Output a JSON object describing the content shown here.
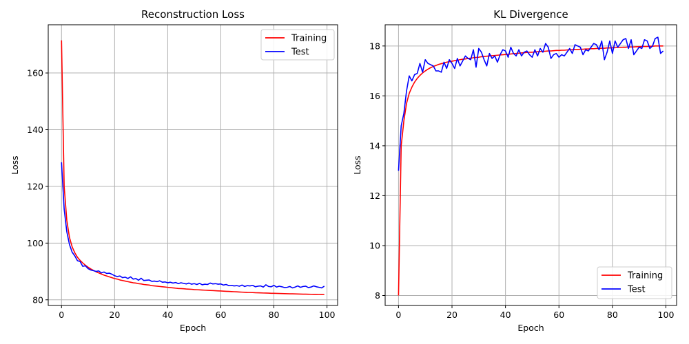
{
  "chart_data": [
    {
      "type": "line",
      "title": "Reconstruction Loss",
      "xlabel": "Epoch",
      "ylabel": "Loss",
      "xlim": [
        -5,
        104
      ],
      "ylim": [
        78,
        177
      ],
      "xticks": [
        0,
        20,
        40,
        60,
        80,
        100
      ],
      "yticks": [
        80,
        100,
        120,
        140,
        160
      ],
      "grid": true,
      "legend": "top-right",
      "series": [
        {
          "name": "Training",
          "color": "#ff0000",
          "x": [
            0,
            1,
            2,
            3,
            4,
            5,
            6,
            7,
            8,
            9,
            10,
            11,
            12,
            13,
            14,
            15,
            16,
            17,
            18,
            19,
            20,
            21,
            22,
            23,
            24,
            25,
            26,
            27,
            28,
            29,
            30,
            31,
            32,
            33,
            34,
            35,
            36,
            37,
            38,
            39,
            40,
            41,
            42,
            43,
            44,
            45,
            46,
            47,
            48,
            49,
            50,
            51,
            52,
            53,
            54,
            55,
            56,
            57,
            58,
            59,
            60,
            61,
            62,
            63,
            64,
            65,
            66,
            67,
            68,
            69,
            70,
            71,
            72,
            73,
            74,
            75,
            76,
            77,
            78,
            79,
            80,
            81,
            82,
            83,
            84,
            85,
            86,
            87,
            88,
            89,
            90,
            91,
            92,
            93,
            94,
            95,
            96,
            97,
            98,
            99
          ],
          "values": [
            171.5,
            120.0,
            108.0,
            102.0,
            98.7,
            96.6,
            95.0,
            93.9,
            93.0,
            92.2,
            91.5,
            90.9,
            90.4,
            89.9,
            89.5,
            89.1,
            88.7,
            88.4,
            88.1,
            87.8,
            87.5,
            87.3,
            87.0,
            86.8,
            86.6,
            86.4,
            86.2,
            86.0,
            85.9,
            85.7,
            85.6,
            85.4,
            85.3,
            85.2,
            85.0,
            84.9,
            84.8,
            84.7,
            84.6,
            84.5,
            84.4,
            84.3,
            84.2,
            84.1,
            84.0,
            83.95,
            83.9,
            83.8,
            83.75,
            83.7,
            83.6,
            83.55,
            83.5,
            83.45,
            83.4,
            83.35,
            83.3,
            83.25,
            83.2,
            83.15,
            83.1,
            83.05,
            83.0,
            82.95,
            82.9,
            82.85,
            82.8,
            82.75,
            82.7,
            82.65,
            82.6,
            82.58,
            82.55,
            82.5,
            82.48,
            82.45,
            82.4,
            82.38,
            82.35,
            82.3,
            82.28,
            82.25,
            82.22,
            82.2,
            82.17,
            82.15,
            82.12,
            82.1,
            82.08,
            82.05,
            82.03,
            82.0,
            81.98,
            81.96,
            81.94,
            81.92,
            81.9,
            81.88,
            81.86,
            81.85
          ]
        },
        {
          "name": "Test",
          "color": "#0000ff",
          "x": [
            0,
            1,
            2,
            3,
            4,
            5,
            6,
            7,
            8,
            9,
            10,
            11,
            12,
            13,
            14,
            15,
            16,
            17,
            18,
            19,
            20,
            21,
            22,
            23,
            24,
            25,
            26,
            27,
            28,
            29,
            30,
            31,
            32,
            33,
            34,
            35,
            36,
            37,
            38,
            39,
            40,
            41,
            42,
            43,
            44,
            45,
            46,
            47,
            48,
            49,
            50,
            51,
            52,
            53,
            54,
            55,
            56,
            57,
            58,
            59,
            60,
            61,
            62,
            63,
            64,
            65,
            66,
            67,
            68,
            69,
            70,
            71,
            72,
            73,
            74,
            75,
            76,
            77,
            78,
            79,
            80,
            81,
            82,
            83,
            84,
            85,
            86,
            87,
            88,
            89,
            90,
            91,
            92,
            93,
            94,
            95,
            96,
            97,
            98,
            99
          ],
          "values": [
            128.5,
            112.0,
            104.0,
            99.5,
            96.8,
            95.5,
            93.8,
            93.5,
            91.8,
            92.0,
            91.0,
            90.5,
            90.3,
            90.0,
            90.2,
            89.5,
            89.8,
            89.3,
            89.4,
            89.0,
            88.5,
            88.2,
            88.4,
            87.8,
            88.0,
            87.5,
            88.1,
            87.3,
            87.5,
            86.9,
            87.6,
            86.8,
            86.9,
            87.0,
            86.5,
            86.6,
            86.4,
            86.7,
            86.2,
            86.3,
            86.0,
            86.2,
            85.9,
            86.1,
            85.7,
            86.0,
            85.8,
            85.6,
            85.9,
            85.5,
            85.7,
            85.4,
            85.8,
            85.3,
            85.5,
            85.4,
            85.9,
            85.6,
            85.7,
            85.5,
            85.6,
            85.2,
            85.4,
            85.0,
            85.1,
            84.9,
            85.0,
            84.8,
            85.2,
            84.7,
            85.0,
            84.9,
            85.1,
            84.6,
            84.8,
            84.9,
            84.5,
            85.3,
            84.7,
            84.6,
            85.1,
            84.5,
            84.8,
            84.6,
            84.3,
            84.4,
            84.7,
            84.2,
            84.5,
            84.9,
            84.4,
            84.7,
            84.8,
            84.3,
            84.5,
            84.9,
            84.6,
            84.4,
            84.2,
            84.8
          ]
        }
      ]
    },
    {
      "type": "line",
      "title": "KL Divergence",
      "xlabel": "Epoch",
      "ylabel": "Loss",
      "xlim": [
        -5,
        104
      ],
      "ylim": [
        7.6,
        18.85
      ],
      "xticks": [
        0,
        20,
        40,
        60,
        80,
        100
      ],
      "yticks": [
        8,
        10,
        12,
        14,
        16,
        18
      ],
      "grid": true,
      "legend": "bottom-right",
      "series": [
        {
          "name": "Training",
          "color": "#ff0000",
          "x": [
            0,
            1,
            2,
            3,
            4,
            5,
            6,
            7,
            8,
            9,
            10,
            11,
            12,
            13,
            14,
            15,
            16,
            17,
            18,
            19,
            20,
            21,
            22,
            23,
            24,
            25,
            26,
            27,
            28,
            29,
            30,
            31,
            32,
            33,
            34,
            35,
            36,
            37,
            38,
            39,
            40,
            41,
            42,
            43,
            44,
            45,
            46,
            47,
            48,
            49,
            50,
            51,
            52,
            53,
            54,
            55,
            56,
            57,
            58,
            59,
            60,
            61,
            62,
            63,
            64,
            65,
            66,
            67,
            68,
            69,
            70,
            71,
            72,
            73,
            74,
            75,
            76,
            77,
            78,
            79,
            80,
            81,
            82,
            83,
            84,
            85,
            86,
            87,
            88,
            89,
            90,
            91,
            92,
            93,
            94,
            95,
            96,
            97,
            98,
            99
          ],
          "values": [
            8.0,
            14.0,
            15.0,
            15.7,
            16.1,
            16.35,
            16.55,
            16.7,
            16.82,
            16.92,
            17.0,
            17.07,
            17.13,
            17.18,
            17.22,
            17.26,
            17.29,
            17.32,
            17.35,
            17.37,
            17.39,
            17.41,
            17.43,
            17.45,
            17.47,
            17.48,
            17.5,
            17.51,
            17.53,
            17.54,
            17.55,
            17.57,
            17.58,
            17.59,
            17.6,
            17.61,
            17.62,
            17.63,
            17.64,
            17.65,
            17.66,
            17.67,
            17.68,
            17.69,
            17.7,
            17.71,
            17.72,
            17.73,
            17.74,
            17.75,
            17.75,
            17.76,
            17.77,
            17.78,
            17.78,
            17.79,
            17.8,
            17.8,
            17.81,
            17.82,
            17.82,
            17.83,
            17.83,
            17.84,
            17.85,
            17.85,
            17.86,
            17.86,
            17.87,
            17.87,
            17.88,
            17.88,
            17.89,
            17.89,
            17.9,
            17.9,
            17.91,
            17.91,
            17.92,
            17.92,
            17.93,
            17.93,
            17.94,
            17.94,
            17.95,
            17.95,
            17.96,
            17.96,
            17.96,
            17.97,
            17.97,
            17.98,
            17.98,
            17.98,
            17.99,
            17.99,
            18.0,
            18.0,
            18.0,
            18.0
          ]
        },
        {
          "name": "Test",
          "color": "#0000ff",
          "x": [
            0,
            1,
            2,
            3,
            4,
            5,
            6,
            7,
            8,
            9,
            10,
            11,
            12,
            13,
            14,
            15,
            16,
            17,
            18,
            19,
            20,
            21,
            22,
            23,
            24,
            25,
            26,
            27,
            28,
            29,
            30,
            31,
            32,
            33,
            34,
            35,
            36,
            37,
            38,
            39,
            40,
            41,
            42,
            43,
            44,
            45,
            46,
            47,
            48,
            49,
            50,
            51,
            52,
            53,
            54,
            55,
            56,
            57,
            58,
            59,
            60,
            61,
            62,
            63,
            64,
            65,
            66,
            67,
            68,
            69,
            70,
            71,
            72,
            73,
            74,
            75,
            76,
            77,
            78,
            79,
            80,
            81,
            82,
            83,
            84,
            85,
            86,
            87,
            88,
            89,
            90,
            91,
            92,
            93,
            94,
            95,
            96,
            97,
            98,
            99
          ],
          "values": [
            13.0,
            14.8,
            15.3,
            16.2,
            16.8,
            16.6,
            16.85,
            16.9,
            17.3,
            16.95,
            17.45,
            17.3,
            17.25,
            17.2,
            17.0,
            17.0,
            16.95,
            17.35,
            17.1,
            17.45,
            17.3,
            17.1,
            17.5,
            17.2,
            17.4,
            17.6,
            17.5,
            17.45,
            17.85,
            17.15,
            17.9,
            17.75,
            17.45,
            17.2,
            17.7,
            17.5,
            17.6,
            17.35,
            17.65,
            17.85,
            17.8,
            17.55,
            17.95,
            17.7,
            17.6,
            17.85,
            17.6,
            17.75,
            17.8,
            17.65,
            17.55,
            17.85,
            17.6,
            17.9,
            17.75,
            18.1,
            17.95,
            17.5,
            17.65,
            17.7,
            17.55,
            17.65,
            17.6,
            17.75,
            17.9,
            17.7,
            18.05,
            18.0,
            17.95,
            17.65,
            17.85,
            17.8,
            17.95,
            18.1,
            18.05,
            17.85,
            18.2,
            17.45,
            17.75,
            18.2,
            17.7,
            18.2,
            17.95,
            18.1,
            18.25,
            18.3,
            17.9,
            18.25,
            17.65,
            17.8,
            17.95,
            17.9,
            18.25,
            18.2,
            17.9,
            18.0,
            18.3,
            18.35,
            17.7,
            17.8
          ]
        }
      ]
    }
  ]
}
